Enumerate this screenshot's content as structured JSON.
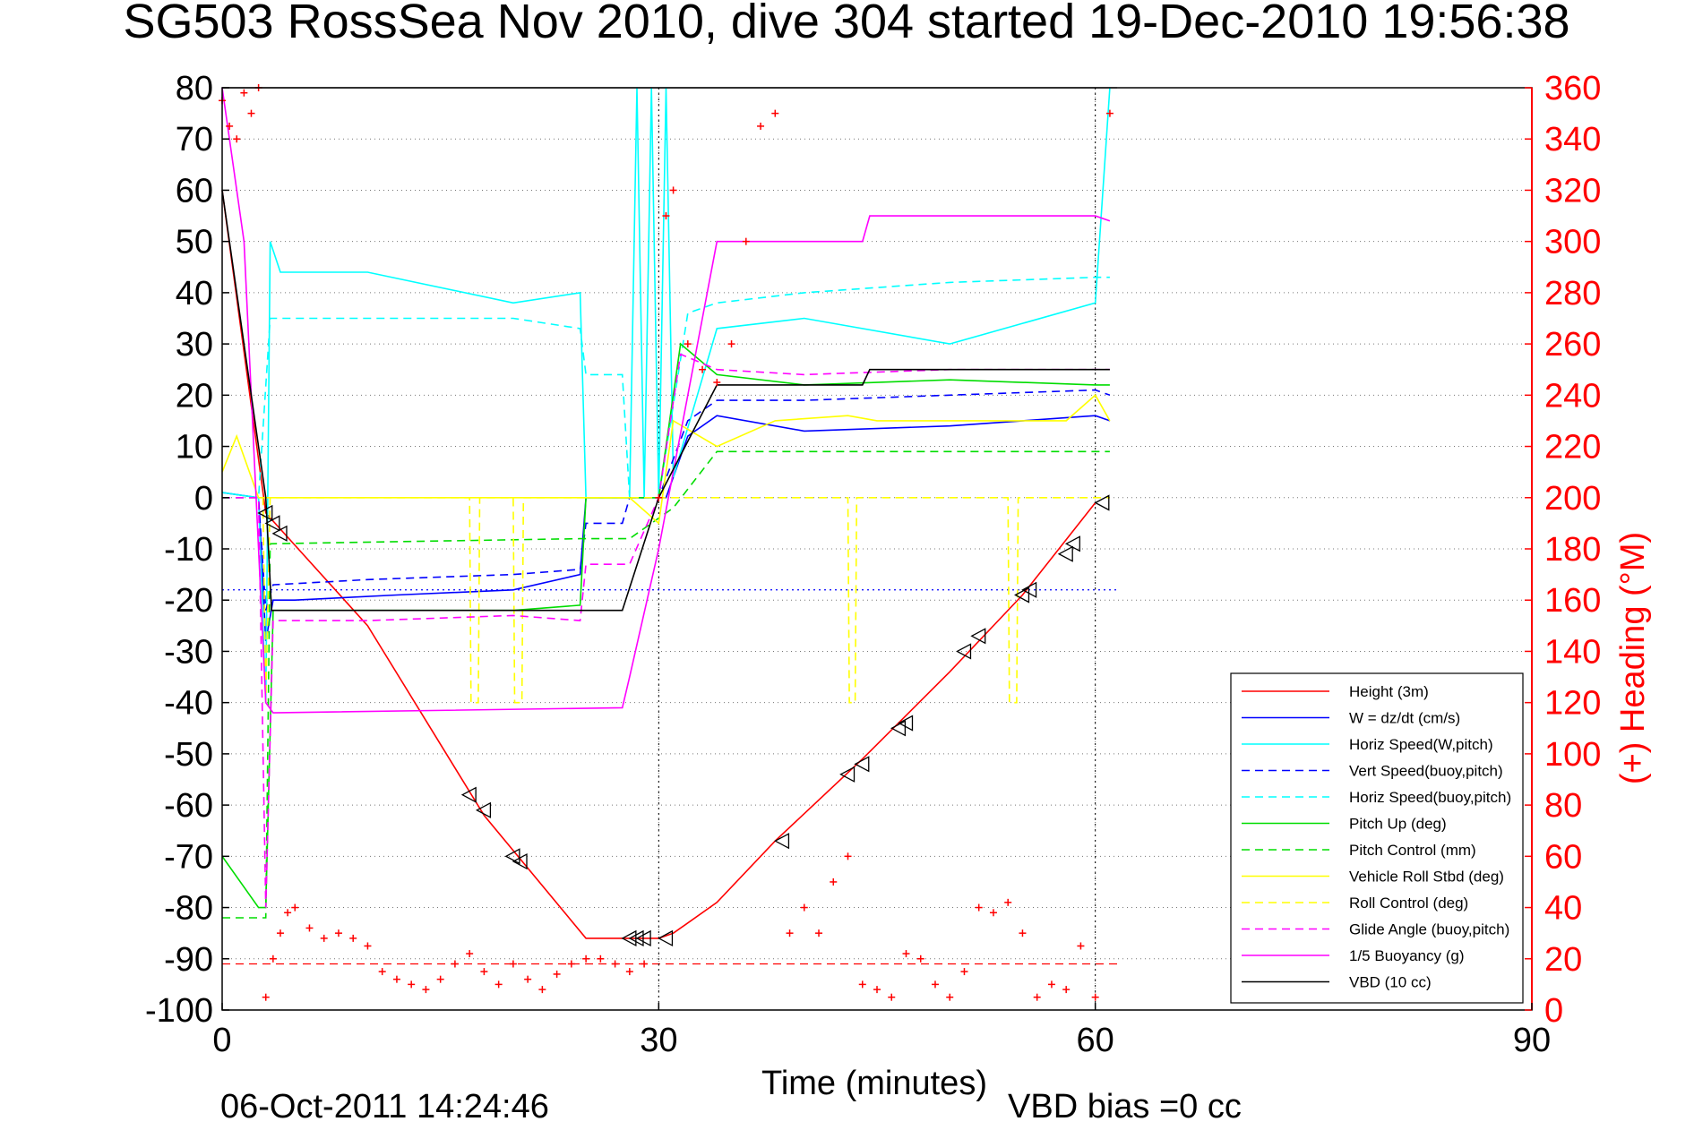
{
  "chart_data": {
    "type": "line",
    "title": "SG503 RossSea Nov 2010, dive 304 started 19-Dec-2010 19:56:38",
    "xlabel": "Time (minutes)",
    "ylabel": "",
    "ylabel_right": "(+) Heading (°M)",
    "xlim": [
      0,
      90
    ],
    "ylim": [
      -100,
      80
    ],
    "ylim_right": [
      0,
      360
    ],
    "xticks": [
      "0",
      "30",
      "60",
      "90"
    ],
    "yticks": [
      "80",
      "70",
      "60",
      "50",
      "40",
      "30",
      "20",
      "10",
      "0",
      "-10",
      "-20",
      "-30",
      "-40",
      "-50",
      "-60",
      "-70",
      "-80",
      "-90",
      "-100"
    ],
    "yticks_right": [
      "360",
      "340",
      "320",
      "300",
      "280",
      "260",
      "240",
      "220",
      "200",
      "180",
      "160",
      "140",
      "120",
      "100",
      "80",
      "60",
      "40",
      "20",
      "0"
    ],
    "grid": true,
    "legend_position": "bottom-right",
    "colors": {
      "axis": "#000000",
      "right_axis": "#ff0000",
      "grid": "#777777"
    },
    "series": [
      {
        "name": "Height (3m)",
        "color": "#ff0000",
        "dash": "solid",
        "x": [
          0,
          3,
          10,
          18,
          25,
          28,
          30,
          31,
          34,
          38,
          44,
          50,
          55,
          60
        ],
        "y": [
          60,
          -3,
          -25,
          -62,
          -86,
          -86,
          -86,
          -85,
          -79,
          -67,
          -51,
          -34,
          -19,
          -1
        ]
      },
      {
        "name": "W = dz/dt (cm/s)",
        "color": "#0000ff",
        "dash": "solid",
        "x": [
          0,
          2.5,
          3,
          3.5,
          5,
          12,
          20,
          24.6,
          25,
          28,
          30.5,
          32,
          34,
          40,
          50,
          60,
          61
        ],
        "y": [
          1,
          0,
          -28,
          -20,
          -20,
          -19,
          -18,
          -15,
          0,
          0,
          0,
          12,
          16,
          13,
          14,
          16,
          15
        ]
      },
      {
        "name": "Horiz Speed(W,pitch)",
        "color": "#00ffff",
        "dash": "solid",
        "x": [
          0,
          2.5,
          3,
          3.3,
          4,
          10,
          20,
          24.6,
          25,
          28,
          28.5,
          29,
          29.5,
          30,
          30.5,
          31,
          34,
          40,
          50,
          60,
          61
        ],
        "y": [
          1,
          0,
          -40,
          50,
          44,
          44,
          38,
          40,
          0,
          0,
          80,
          0,
          80,
          0,
          80,
          4,
          33,
          35,
          30,
          38,
          80
        ]
      },
      {
        "name": "Vert Speed(buoy,pitch)",
        "color": "#0000ff",
        "dash": "dashed",
        "x": [
          0,
          2.5,
          3,
          3.5,
          10,
          20,
          24.6,
          25,
          27.5,
          28,
          30,
          32,
          34,
          40,
          50,
          60,
          61
        ],
        "y": [
          0,
          0,
          -22,
          -17,
          -16,
          -15,
          -14,
          -5,
          -5,
          0,
          0,
          15,
          19,
          19,
          20,
          21,
          20
        ]
      },
      {
        "name": "Horiz Speed(buoy,pitch)",
        "color": "#00ffff",
        "dash": "dashed",
        "x": [
          0,
          2.5,
          3.3,
          10,
          20,
          24.6,
          25,
          27.5,
          28,
          30,
          32,
          34,
          40,
          50,
          60,
          61
        ],
        "y": [
          0,
          0,
          35,
          35,
          35,
          33,
          24,
          24,
          0,
          0,
          36,
          38,
          40,
          42,
          43,
          43
        ]
      },
      {
        "name": "Pitch Up (deg)",
        "color": "#00dd00",
        "dash": "solid",
        "x": [
          0,
          2.5,
          3,
          3.5,
          10,
          20,
          24.6,
          25,
          28,
          30,
          31.5,
          34,
          40,
          50,
          60,
          61
        ],
        "y": [
          -70,
          -80,
          -80,
          -22,
          -22,
          -22,
          -21,
          0,
          0,
          0,
          30,
          24,
          22,
          23,
          22,
          22
        ]
      },
      {
        "name": "Pitch Control (mm)",
        "color": "#00dd00",
        "dash": "dashed",
        "x": [
          0,
          3,
          3.3,
          24.6,
          25,
          28,
          31,
          34,
          61
        ],
        "y": [
          -82,
          -82,
          -9,
          -8,
          -8,
          -8,
          -2,
          9,
          9
        ]
      },
      {
        "name": "Vehicle Roll Stbd (deg)",
        "color": "#ffff00",
        "dash": "solid",
        "x": [
          0,
          1,
          2.5,
          3.5,
          10,
          17,
          20,
          25,
          28,
          30,
          31,
          34,
          38,
          43,
          45,
          55,
          58,
          60,
          61
        ],
        "y": [
          5,
          12,
          0,
          0,
          0,
          0,
          0,
          0,
          0,
          -5,
          15,
          10,
          15,
          16,
          15,
          15,
          15,
          20,
          15
        ]
      },
      {
        "name": "Roll Control (deg)",
        "color": "#ffff00",
        "dash": "dashed",
        "x": [
          0,
          2.8,
          3,
          3.3,
          17,
          17.1,
          17.6,
          17.7,
          20,
          20.1,
          20.6,
          20.7,
          34,
          40,
          43,
          43.1,
          43.5,
          43.6,
          54,
          54.1,
          54.6,
          54.7,
          60,
          61
        ],
        "y": [
          0,
          0,
          -40,
          0,
          0,
          -40,
          -40,
          0,
          0,
          -40,
          -40,
          0,
          0,
          0,
          0,
          -40,
          -40,
          0,
          0,
          -40,
          -40,
          0,
          0,
          0
        ]
      },
      {
        "name": "Glide Angle (buoy,pitch)",
        "color": "#ff00ff",
        "dash": "dashed",
        "x": [
          0,
          2.5,
          3,
          3.5,
          10,
          20,
          24.6,
          25,
          28,
          30,
          31.5,
          34,
          40,
          50,
          60,
          61
        ],
        "y": [
          0,
          0,
          -80,
          -24,
          -24,
          -23,
          -24,
          -13,
          -13,
          0,
          28,
          25,
          24,
          25,
          25,
          25
        ]
      },
      {
        "name": "1/5 Buoyancy (g)",
        "color": "#ff00ff",
        "dash": "solid",
        "x": [
          0,
          1.5,
          3,
          3.5,
          27.5,
          28,
          30,
          34,
          44,
          44.5,
          60,
          61
        ],
        "y": [
          80,
          50,
          -40,
          -42,
          -41,
          -35,
          -10,
          50,
          50,
          55,
          55,
          54
        ]
      },
      {
        "name": "VBD (10 cc)",
        "color": "#000000",
        "dash": "solid",
        "x": [
          0,
          3,
          3.4,
          27.5,
          30,
          34,
          44,
          44.5,
          61
        ],
        "y": [
          60,
          0,
          -22,
          -22,
          0,
          22,
          22,
          25,
          25
        ]
      }
    ],
    "heading_points": {
      "color": "#ff0000",
      "x": [
        0,
        0.5,
        1,
        1.5,
        2,
        2.5,
        3,
        3.5,
        4,
        4.5,
        5,
        6,
        7,
        8,
        9,
        10,
        11,
        12,
        13,
        14,
        15,
        16,
        17,
        18,
        19,
        20,
        21,
        22,
        23,
        24,
        25,
        26,
        27,
        28,
        29,
        30,
        30.5,
        31,
        32,
        33,
        34,
        35,
        36,
        37,
        38,
        39,
        40,
        41,
        42,
        43,
        44,
        45,
        46,
        47,
        48,
        49,
        50,
        51,
        52,
        53,
        54,
        55,
        56,
        57,
        58,
        59,
        60,
        61
      ],
      "y": [
        355,
        345,
        340,
        358,
        350,
        360,
        5,
        20,
        30,
        38,
        40,
        32,
        28,
        30,
        28,
        25,
        15,
        12,
        10,
        8,
        12,
        18,
        22,
        15,
        10,
        18,
        12,
        8,
        14,
        18,
        20,
        20,
        18,
        15,
        18,
        200,
        310,
        320,
        260,
        250,
        245,
        260,
        300,
        345,
        350,
        30,
        40,
        30,
        50,
        60,
        10,
        8,
        5,
        22,
        20,
        10,
        5,
        15,
        40,
        38,
        42,
        30,
        5,
        10,
        8,
        25,
        5,
        350
      ]
    },
    "markers": {
      "type": "triangle",
      "color": "#000000",
      "x": [
        3,
        3.5,
        4,
        17,
        18,
        20,
        20.5,
        28,
        28.5,
        29,
        30.5,
        38.5,
        43,
        44,
        46.5,
        47,
        51,
        52,
        55,
        55.5,
        58,
        58.5,
        60.5
      ],
      "y": [
        -3,
        -5,
        -7,
        -58,
        -61,
        -70,
        -71,
        -86,
        -86,
        -86,
        -86,
        -67,
        -54,
        -52,
        -45,
        -44,
        -30,
        -27,
        -19,
        -18,
        -11,
        -9,
        -1
      ]
    },
    "hlines": [
      {
        "y": -91,
        "color": "#ff0000",
        "dash": "dashed"
      },
      {
        "y": -18,
        "color": "#0000ff",
        "dash": "dotted"
      },
      {
        "y": 80,
        "color": "#000000",
        "dash": "solid"
      }
    ],
    "vlines": [
      {
        "x": 30,
        "color": "#000000",
        "dash": "dotted"
      },
      {
        "x": 60,
        "color": "#000000",
        "dash": "dotted"
      }
    ]
  },
  "footer": {
    "timestamp": "06-Oct-2011 14:24:46",
    "vbd_bias": "VBD bias =0 cc"
  }
}
